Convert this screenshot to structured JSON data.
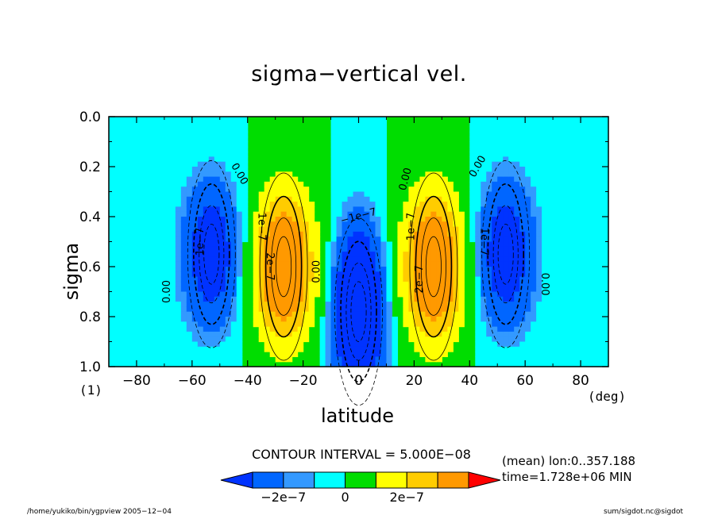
{
  "chart_data": {
    "type": "contour",
    "title": "sigma−vertical vel.",
    "xlabel": "latitude",
    "ylabel": "sigma",
    "x_unit": "(deg)",
    "x_footnote": "(1)",
    "xlim": [
      -90,
      90
    ],
    "ylim": [
      1.0,
      0.0
    ],
    "x_ticks": [
      "−80",
      "−60",
      "−40",
      "−20",
      "0",
      "20",
      "40",
      "60",
      "80"
    ],
    "x_tick_values": [
      -80,
      -60,
      -40,
      -20,
      0,
      20,
      40,
      60,
      80
    ],
    "y_ticks": [
      "0.0",
      "0.2",
      "0.4",
      "0.6",
      "0.8",
      "1.0"
    ],
    "y_tick_values": [
      0.0,
      0.2,
      0.4,
      0.6,
      0.8,
      1.0
    ],
    "contour_interval_text": "CONTOUR INTERVAL = 5.000E−08",
    "contour_interval": 5e-08,
    "features": [
      {
        "lat": -53,
        "sigma": 0.55,
        "value": -1.5e-07,
        "kind": "min"
      },
      {
        "lat": -27,
        "sigma": 0.6,
        "value": 2.5e-07,
        "kind": "max"
      },
      {
        "lat": 0,
        "sigma": 0.78,
        "value": -2.5e-07,
        "kind": "min"
      },
      {
        "lat": 27,
        "sigma": 0.6,
        "value": 2.5e-07,
        "kind": "max"
      },
      {
        "lat": 53,
        "sigma": 0.55,
        "value": -1.5e-07,
        "kind": "min"
      }
    ],
    "contour_labels": [
      {
        "text": "0.00",
        "lat": -69,
        "sigma": 0.7,
        "rot": -90
      },
      {
        "text": "0.00",
        "lat": -43,
        "sigma": 0.23,
        "rot": 60
      },
      {
        "text": "0.00",
        "lat": -15,
        "sigma": 0.62,
        "rot": -90
      },
      {
        "text": "0.00",
        "lat": 17,
        "sigma": 0.25,
        "rot": -75
      },
      {
        "text": "0.00",
        "lat": 43,
        "sigma": 0.2,
        "rot": -60
      },
      {
        "text": "0.00",
        "lat": 67,
        "sigma": 0.67,
        "rot": 90
      },
      {
        "text": "1e−7",
        "lat": -57,
        "sigma": 0.5,
        "rot": -90
      },
      {
        "text": "1e−7",
        "lat": -35,
        "sigma": 0.44,
        "rot": 90
      },
      {
        "text": "2e−7",
        "lat": -32,
        "sigma": 0.6,
        "rot": 90
      },
      {
        "text": "−1e−7",
        "lat": 0,
        "sigma": 0.4,
        "rot": -15
      },
      {
        "text": "1e−7",
        "lat": 19,
        "sigma": 0.44,
        "rot": -90
      },
      {
        "text": "2e−7",
        "lat": 22,
        "sigma": 0.65,
        "rot": -90
      },
      {
        "text": "1e−7",
        "lat": 45,
        "sigma": 0.5,
        "rot": 90
      }
    ],
    "colorbar": {
      "colors": [
        "#0033ff",
        "#0066ff",
        "#3399ff",
        "#00ffff",
        "#00dd00",
        "#ffff00",
        "#ffcc00",
        "#ff9900",
        "#ff0000"
      ],
      "labels": [
        "−2e−7",
        "0",
        "2e−7"
      ]
    },
    "annotation_mean": "(mean) lon:0..357.188",
    "annotation_time": "time=1.728e+06 MIN",
    "footer_left": "/home/yukiko/bin/ygpview  2005−12−04",
    "footer_right": "sum/sigdot.nc@sigdot"
  }
}
